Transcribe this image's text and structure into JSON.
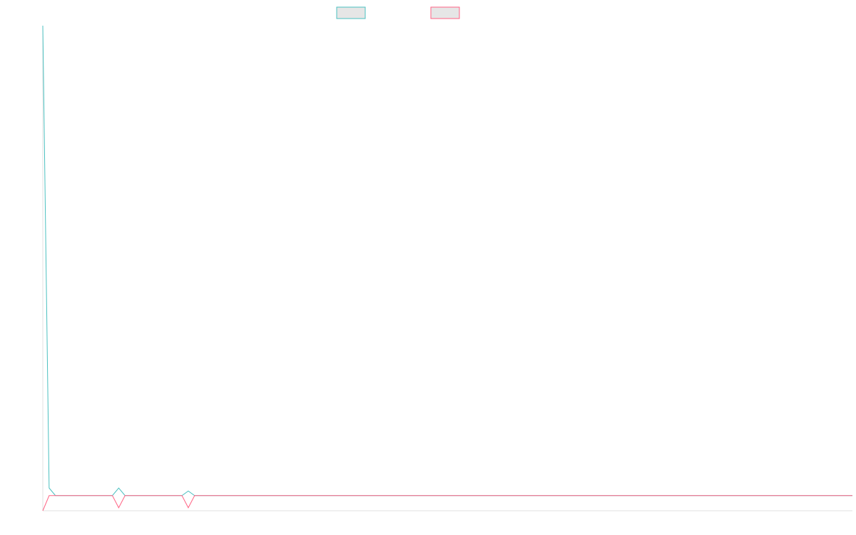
{
  "chart_data": {
    "type": "line",
    "title": "",
    "xlabel": "",
    "ylabel": "",
    "legend_position": "top-center",
    "grid": false,
    "x_count": 129,
    "ylim": [
      -1,
      31
    ],
    "series": [
      {
        "name": "",
        "color": "#4bc0c0",
        "fill": "#e6e6e6",
        "values": [
          31,
          0.5,
          0,
          0,
          0,
          0,
          0,
          0,
          0,
          0,
          0,
          0,
          0.5,
          0,
          0,
          0,
          0,
          0,
          0,
          0,
          0,
          0,
          0,
          0.3,
          0,
          0,
          0,
          0,
          0,
          0,
          0,
          0,
          0,
          0,
          0,
          0,
          0,
          0,
          0,
          0,
          0,
          0,
          0,
          0,
          0,
          0,
          0,
          0,
          0,
          0,
          0,
          0,
          0,
          0,
          0,
          0,
          0,
          0,
          0,
          0,
          0,
          0,
          0,
          0,
          0,
          0,
          0,
          0,
          0,
          0,
          0,
          0,
          0,
          0,
          0,
          0,
          0,
          0,
          0,
          0,
          0,
          0,
          0,
          0,
          0,
          0,
          0,
          0,
          0,
          0,
          0,
          0,
          0,
          0,
          0,
          0,
          0,
          0,
          0,
          0,
          0,
          0,
          0,
          0,
          0,
          0,
          0,
          0,
          0,
          0,
          0,
          0,
          0,
          0,
          0,
          0,
          0,
          0,
          0,
          0,
          0,
          0,
          0,
          0,
          0,
          0,
          0,
          0,
          0
        ]
      },
      {
        "name": "",
        "color": "#ff6384",
        "fill": "#e6e6e6",
        "values": [
          -1,
          0,
          0,
          0,
          0,
          0,
          0,
          0,
          0,
          0,
          0,
          0,
          -0.8,
          0,
          0,
          0,
          0,
          0,
          0,
          0,
          0,
          0,
          0,
          -0.8,
          0,
          0,
          0,
          0,
          0,
          0,
          0,
          0,
          0,
          0,
          0,
          0,
          0,
          0,
          0,
          0,
          0,
          0,
          0,
          0,
          0,
          0,
          0,
          0,
          0,
          0,
          0,
          0,
          0,
          0,
          0,
          0,
          0,
          0,
          0,
          0,
          0,
          0,
          0,
          0,
          0,
          0,
          0,
          0,
          0,
          0,
          0,
          0,
          0,
          0,
          0,
          0,
          0,
          0,
          0,
          0,
          0,
          0,
          0,
          0,
          0,
          0,
          0,
          0,
          0,
          0,
          0,
          0,
          0,
          0,
          0,
          0,
          0,
          0,
          0,
          0,
          0,
          0,
          0,
          0,
          0,
          0,
          0,
          0,
          0,
          0,
          0,
          0,
          0,
          0,
          0,
          0,
          0,
          0,
          0,
          0,
          0,
          0,
          0,
          0,
          0,
          0,
          0,
          0,
          0
        ]
      }
    ]
  }
}
